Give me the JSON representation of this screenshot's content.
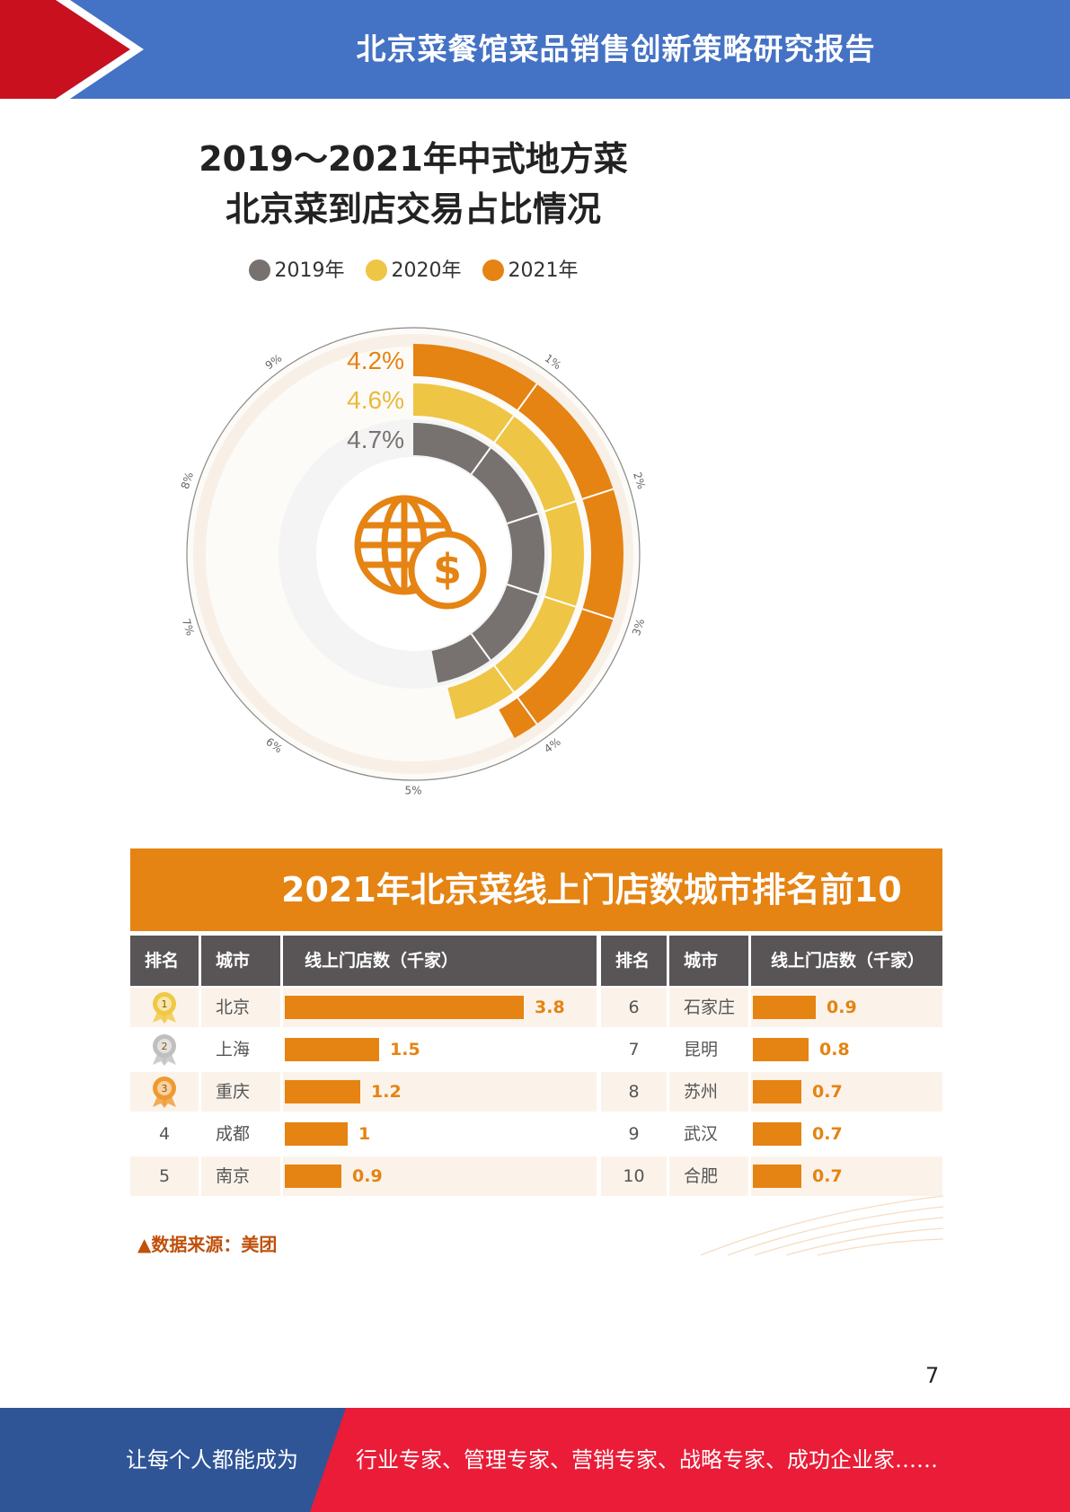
{
  "header": {
    "title": "北京菜餐馆菜品销售创新策略研究报告",
    "colors": {
      "bar": "#4472c4",
      "arrow": "#c8101e"
    }
  },
  "radial_chart": {
    "title_line1": "2019～2021年中式地方菜",
    "title_line2": "北京菜到店交易占比情况",
    "center_icon": "globe-dollar-icon",
    "chart_data": {
      "type": "radial-bar",
      "series": [
        {
          "name": "2019年",
          "value": 4.7,
          "label": "4.7%",
          "color": "#77726f"
        },
        {
          "name": "2020年",
          "value": 4.6,
          "label": "4.6%",
          "color": "#efc546"
        },
        {
          "name": "2021年",
          "value": 4.2,
          "label": "4.2%",
          "color": "#e58313"
        }
      ],
      "scale_ticks": [
        "1%",
        "2%",
        "3%",
        "4%",
        "5%",
        "6%",
        "7%",
        "8%",
        "9%"
      ],
      "scale_max": 10
    }
  },
  "ranking": {
    "title": "2021年北京菜线上门店数城市排名前10",
    "headers": {
      "rank": "排名",
      "city": "城市",
      "stores": "线上门店数（千家）"
    },
    "chart_data": {
      "type": "bar",
      "unit": "千家",
      "rows": [
        {
          "rank": "1",
          "city": "北京",
          "value": 3.8,
          "label": "3.8",
          "medal": "gold-medal-icon"
        },
        {
          "rank": "2",
          "city": "上海",
          "value": 1.5,
          "label": "1.5",
          "medal": "silver-medal-icon"
        },
        {
          "rank": "3",
          "city": "重庆",
          "value": 1.2,
          "label": "1.2",
          "medal": "bronze-medal-icon"
        },
        {
          "rank": "4",
          "city": "成都",
          "value": 1.0,
          "label": "1"
        },
        {
          "rank": "5",
          "city": "南京",
          "value": 0.9,
          "label": "0.9"
        },
        {
          "rank": "6",
          "city": "石家庄",
          "value": 0.9,
          "label": "0.9"
        },
        {
          "rank": "7",
          "city": "昆明",
          "value": 0.8,
          "label": "0.8"
        },
        {
          "rank": "8",
          "city": "苏州",
          "value": 0.7,
          "label": "0.7"
        },
        {
          "rank": "9",
          "city": "武汉",
          "value": 0.7,
          "label": "0.7"
        },
        {
          "rank": "10",
          "city": "合肥",
          "value": 0.7,
          "label": "0.7"
        }
      ]
    },
    "source": "▲数据来源：美团"
  },
  "page_number": "7",
  "footer": {
    "left": "让每个人都能成为",
    "right": "行业专家、管理专家、营销专家、战略专家、成功企业家……",
    "colors": {
      "left": "#2f5597",
      "right": "#ea1c37"
    }
  }
}
